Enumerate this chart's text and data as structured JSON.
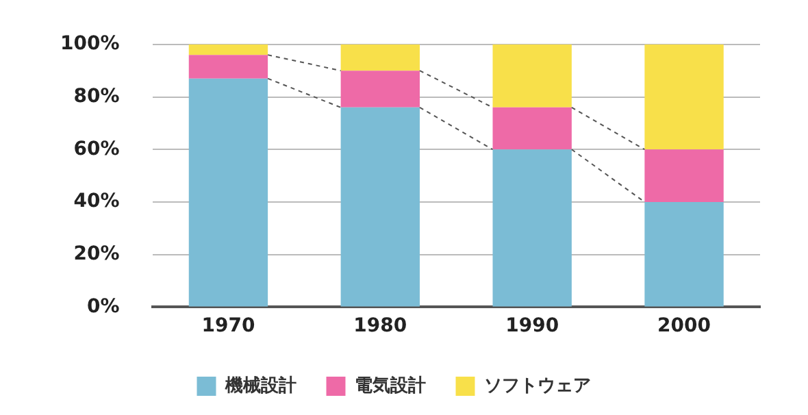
{
  "chart_data": {
    "type": "bar",
    "stacked": true,
    "categories": [
      "1970",
      "1980",
      "1990",
      "2000"
    ],
    "series": [
      {
        "name": "機械設計",
        "color": "#7bbcd5",
        "values": [
          87,
          76,
          60,
          40
        ]
      },
      {
        "name": "電気設計",
        "color": "#ee6aa7",
        "values": [
          9,
          14,
          16,
          20
        ]
      },
      {
        "name": "ソフトウェア",
        "color": "#f8e04a",
        "values": [
          4,
          10,
          24,
          40
        ]
      }
    ],
    "ylim": [
      0,
      100
    ],
    "yticks": [
      {
        "value": 0,
        "label": "0%"
      },
      {
        "value": 20,
        "label": "20%"
      },
      {
        "value": 40,
        "label": "40%"
      },
      {
        "value": 60,
        "label": "60%"
      },
      {
        "value": 80,
        "label": "80%"
      },
      {
        "value": 100,
        "label": "100%"
      }
    ],
    "grid": "y",
    "legend": "bottom"
  }
}
